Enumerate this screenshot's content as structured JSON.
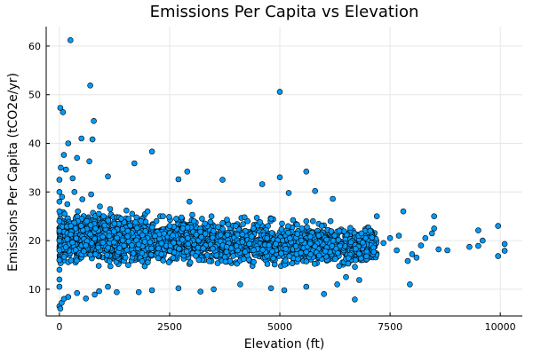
{
  "chart_data": {
    "type": "scatter",
    "title": "Emissions Per Capita vs Elevation",
    "xlabel": "Elevation (ft)",
    "ylabel": "Emissions Per Capita (tCO2e/yr)",
    "xlim": [
      -300,
      10500
    ],
    "ylim": [
      4.5,
      64
    ],
    "xticks": [
      0,
      2500,
      5000,
      7500,
      10000
    ],
    "xtick_labels": [
      "0",
      "2500",
      "5000",
      "7500",
      "10000"
    ],
    "yticks": [
      10,
      20,
      30,
      40,
      50,
      60
    ],
    "ytick_labels": [
      "10",
      "20",
      "30",
      "40",
      "50",
      "60"
    ],
    "grid": true,
    "legend": "none",
    "point_color": "#009af9",
    "points": [
      [
        250,
        61.2
      ],
      [
        700,
        51.9
      ],
      [
        5000,
        50.6
      ],
      [
        20,
        47.3
      ],
      [
        80,
        46.4
      ],
      [
        780,
        44.6
      ],
      [
        500,
        41.0
      ],
      [
        750,
        40.8
      ],
      [
        200,
        40.0
      ],
      [
        2100,
        38.3
      ],
      [
        100,
        37.6
      ],
      [
        400,
        37.0
      ],
      [
        1700,
        35.9
      ],
      [
        680,
        36.3
      ],
      [
        5600,
        34.2
      ],
      [
        2900,
        34.2
      ],
      [
        150,
        34.6
      ],
      [
        1100,
        33.2
      ],
      [
        5000,
        33.0
      ],
      [
        2700,
        32.6
      ],
      [
        3700,
        32.5
      ],
      [
        300,
        32.8
      ],
      [
        4600,
        31.6
      ],
      [
        5800,
        30.2
      ],
      [
        2950,
        28.0
      ],
      [
        5200,
        29.8
      ],
      [
        6200,
        28.6
      ],
      [
        7200,
        25.0
      ],
      [
        8500,
        25.0
      ],
      [
        7800,
        26.0
      ],
      [
        9950,
        23.0
      ],
      [
        9500,
        22.1
      ],
      [
        10100,
        19.3
      ],
      [
        10100,
        17.9
      ],
      [
        9950,
        16.8
      ],
      [
        9500,
        18.9
      ],
      [
        9600,
        20.0
      ],
      [
        9300,
        18.7
      ],
      [
        8800,
        18.0
      ],
      [
        8600,
        18.2
      ],
      [
        8200,
        19.0
      ],
      [
        8100,
        16.5
      ],
      [
        7900,
        15.8
      ],
      [
        8000,
        17.2
      ],
      [
        8300,
        20.5
      ],
      [
        8500,
        22.5
      ],
      [
        8450,
        21.5
      ],
      [
        7950,
        11.0
      ],
      [
        6800,
        11.9
      ],
      [
        6500,
        12.5
      ],
      [
        6700,
        7.9
      ],
      [
        6000,
        9.0
      ],
      [
        6300,
        11.0
      ],
      [
        5600,
        10.5
      ],
      [
        5100,
        9.8
      ],
      [
        4800,
        10.2
      ],
      [
        4100,
        11.0
      ],
      [
        3500,
        10.0
      ],
      [
        3200,
        9.5
      ],
      [
        2700,
        10.2
      ],
      [
        2100,
        9.8
      ],
      [
        1800,
        9.4
      ],
      [
        1300,
        9.4
      ],
      [
        1100,
        10.5
      ],
      [
        900,
        9.6
      ],
      [
        800,
        8.9
      ],
      [
        600,
        8.1
      ],
      [
        400,
        9.2
      ],
      [
        200,
        8.4
      ],
      [
        0,
        6.5
      ],
      [
        20,
        6.0
      ],
      [
        50,
        7.2
      ],
      [
        100,
        8.0
      ],
      [
        0,
        10.5
      ],
      [
        0,
        12.0
      ],
      [
        0,
        14.0
      ],
      [
        0,
        16.0
      ],
      [
        0,
        18.0
      ],
      [
        0,
        20.0
      ],
      [
        0,
        22.0
      ],
      [
        0,
        24.0
      ],
      [
        0,
        26.0
      ],
      [
        0,
        28.0
      ],
      [
        0,
        30.0
      ],
      [
        0,
        32.5
      ],
      [
        30,
        35.0
      ],
      [
        60,
        29.0
      ],
      [
        120,
        25.5
      ],
      [
        180,
        27.5
      ],
      [
        260,
        23.0
      ],
      [
        340,
        30.0
      ],
      [
        420,
        26.0
      ],
      [
        520,
        28.5
      ],
      [
        620,
        24.0
      ],
      [
        720,
        29.5
      ],
      [
        820,
        22.5
      ],
      [
        920,
        27.0
      ],
      [
        1000,
        25.0
      ],
      [
        1150,
        26.5
      ],
      [
        1250,
        23.5
      ],
      [
        1400,
        24.5
      ],
      [
        1550,
        22.0
      ],
      [
        1650,
        25.5
      ],
      [
        1850,
        24.0
      ],
      [
        2000,
        26.0
      ],
      [
        2200,
        24.0
      ],
      [
        2350,
        25.0
      ],
      [
        2500,
        23.0
      ],
      [
        2650,
        24.5
      ],
      [
        2800,
        22.5
      ],
      [
        3050,
        24.0
      ],
      [
        3300,
        23.5
      ],
      [
        3450,
        25.0
      ],
      [
        3600,
        22.8
      ],
      [
        3800,
        24.3
      ],
      [
        4000,
        23.0
      ],
      [
        4200,
        24.8
      ],
      [
        4400,
        22.5
      ],
      [
        4550,
        23.8
      ],
      [
        4800,
        24.5
      ],
      [
        5050,
        23.5
      ],
      [
        5300,
        24.2
      ],
      [
        5500,
        22.5
      ],
      [
        5750,
        24.0
      ],
      [
        5950,
        23.0
      ],
      [
        6150,
        24.0
      ],
      [
        6350,
        22.0
      ],
      [
        6600,
        22.6
      ],
      [
        6850,
        21.5
      ],
      [
        7050,
        22.0
      ],
      [
        7350,
        19.5
      ],
      [
        7500,
        20.5
      ],
      [
        7650,
        18.0
      ],
      [
        7700,
        21.0
      ]
    ],
    "band": {
      "x_range": [
        0,
        7200
      ],
      "y_center_start": 20.5,
      "y_center_end": 18.8,
      "y_spread": 4.2,
      "count": 2600
    }
  }
}
